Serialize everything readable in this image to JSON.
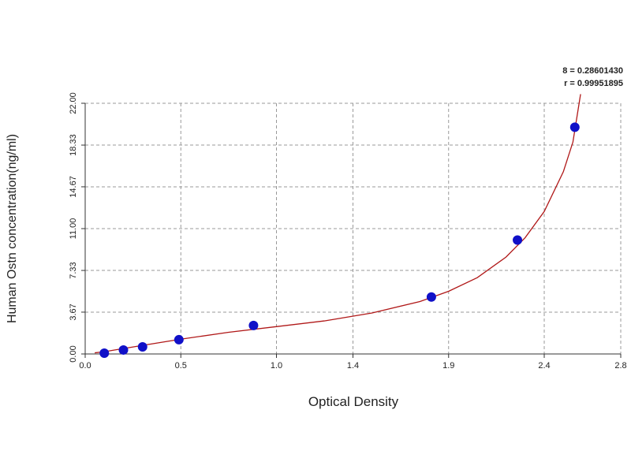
{
  "chart_data": {
    "type": "scatter",
    "x_label": "Optical Density",
    "y_label": "Human Ostn concentration(ng/ml)",
    "annotations": [
      "8 = 0.28601430",
      "r = 0.99951895"
    ],
    "series": [
      {
        "color": "#1010c8",
        "x": [
          0.1,
          0.2,
          0.3,
          0.49,
          0.88,
          1.81,
          2.26,
          2.56
        ],
        "values": [
          0.07,
          0.35,
          0.62,
          1.25,
          2.5,
          5.0,
          10.0,
          19.9
        ]
      }
    ],
    "fit": {
      "color": "#b01818",
      "x": [
        0.05,
        0.1,
        0.3,
        0.5,
        0.75,
        1.0,
        1.25,
        1.5,
        1.75,
        1.9,
        2.05,
        2.2,
        2.3,
        2.4,
        2.5,
        2.55,
        2.59
      ],
      "values": [
        0.1,
        0.2,
        0.75,
        1.3,
        1.9,
        2.4,
        2.9,
        3.6,
        4.6,
        5.5,
        6.7,
        8.5,
        10.2,
        12.5,
        16.0,
        18.6,
        22.8
      ]
    },
    "xlim": [
      0,
      2.8
    ],
    "ylim": [
      0,
      22
    ],
    "xticks": [
      {
        "value": 0,
        "label": "0.0"
      },
      0.5,
      {
        "value": 1,
        "label": "1.0"
      },
      1.4,
      1.9,
      2.4,
      2.8
    ],
    "yticks": [
      {
        "value": 0,
        "label": "0.00"
      },
      3.67,
      7.33,
      {
        "value": 11,
        "label": "11.00"
      },
      14.67,
      18.33,
      {
        "value": 22,
        "label": "22.00"
      }
    ],
    "grid": true
  }
}
